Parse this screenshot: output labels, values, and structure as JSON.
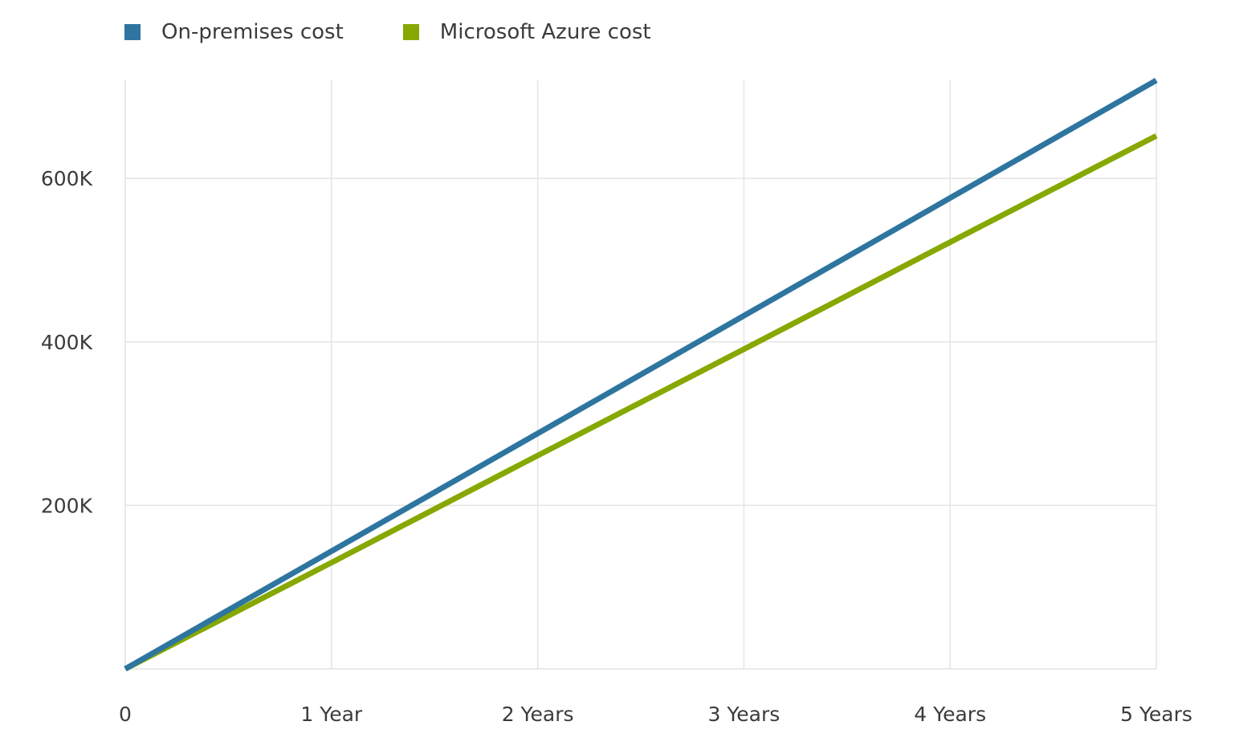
{
  "chart_data": {
    "type": "line",
    "title": "",
    "xlabel": "",
    "ylabel": "",
    "categories": [
      "0",
      "1 Year",
      "2 Years",
      "3 Years",
      "4 Years",
      "5 Years"
    ],
    "x": [
      0,
      1,
      2,
      3,
      4,
      5
    ],
    "xlim": [
      0,
      5
    ],
    "ylim": [
      0,
      720000
    ],
    "y_ticks": [
      200000,
      400000,
      600000
    ],
    "y_tick_labels": [
      "200K",
      "400K",
      "600K"
    ],
    "grid": true,
    "legend_position": "top-left",
    "series": [
      {
        "name": "On-premises cost",
        "color": "#2e75a0",
        "values": [
          0,
          144000,
          288000,
          432000,
          576000,
          720000
        ]
      },
      {
        "name": "Microsoft Azure cost",
        "color": "#86a800",
        "values": [
          0,
          130000,
          261000,
          391000,
          522000,
          652000
        ]
      }
    ],
    "grid_color": "#e4e4e4"
  }
}
